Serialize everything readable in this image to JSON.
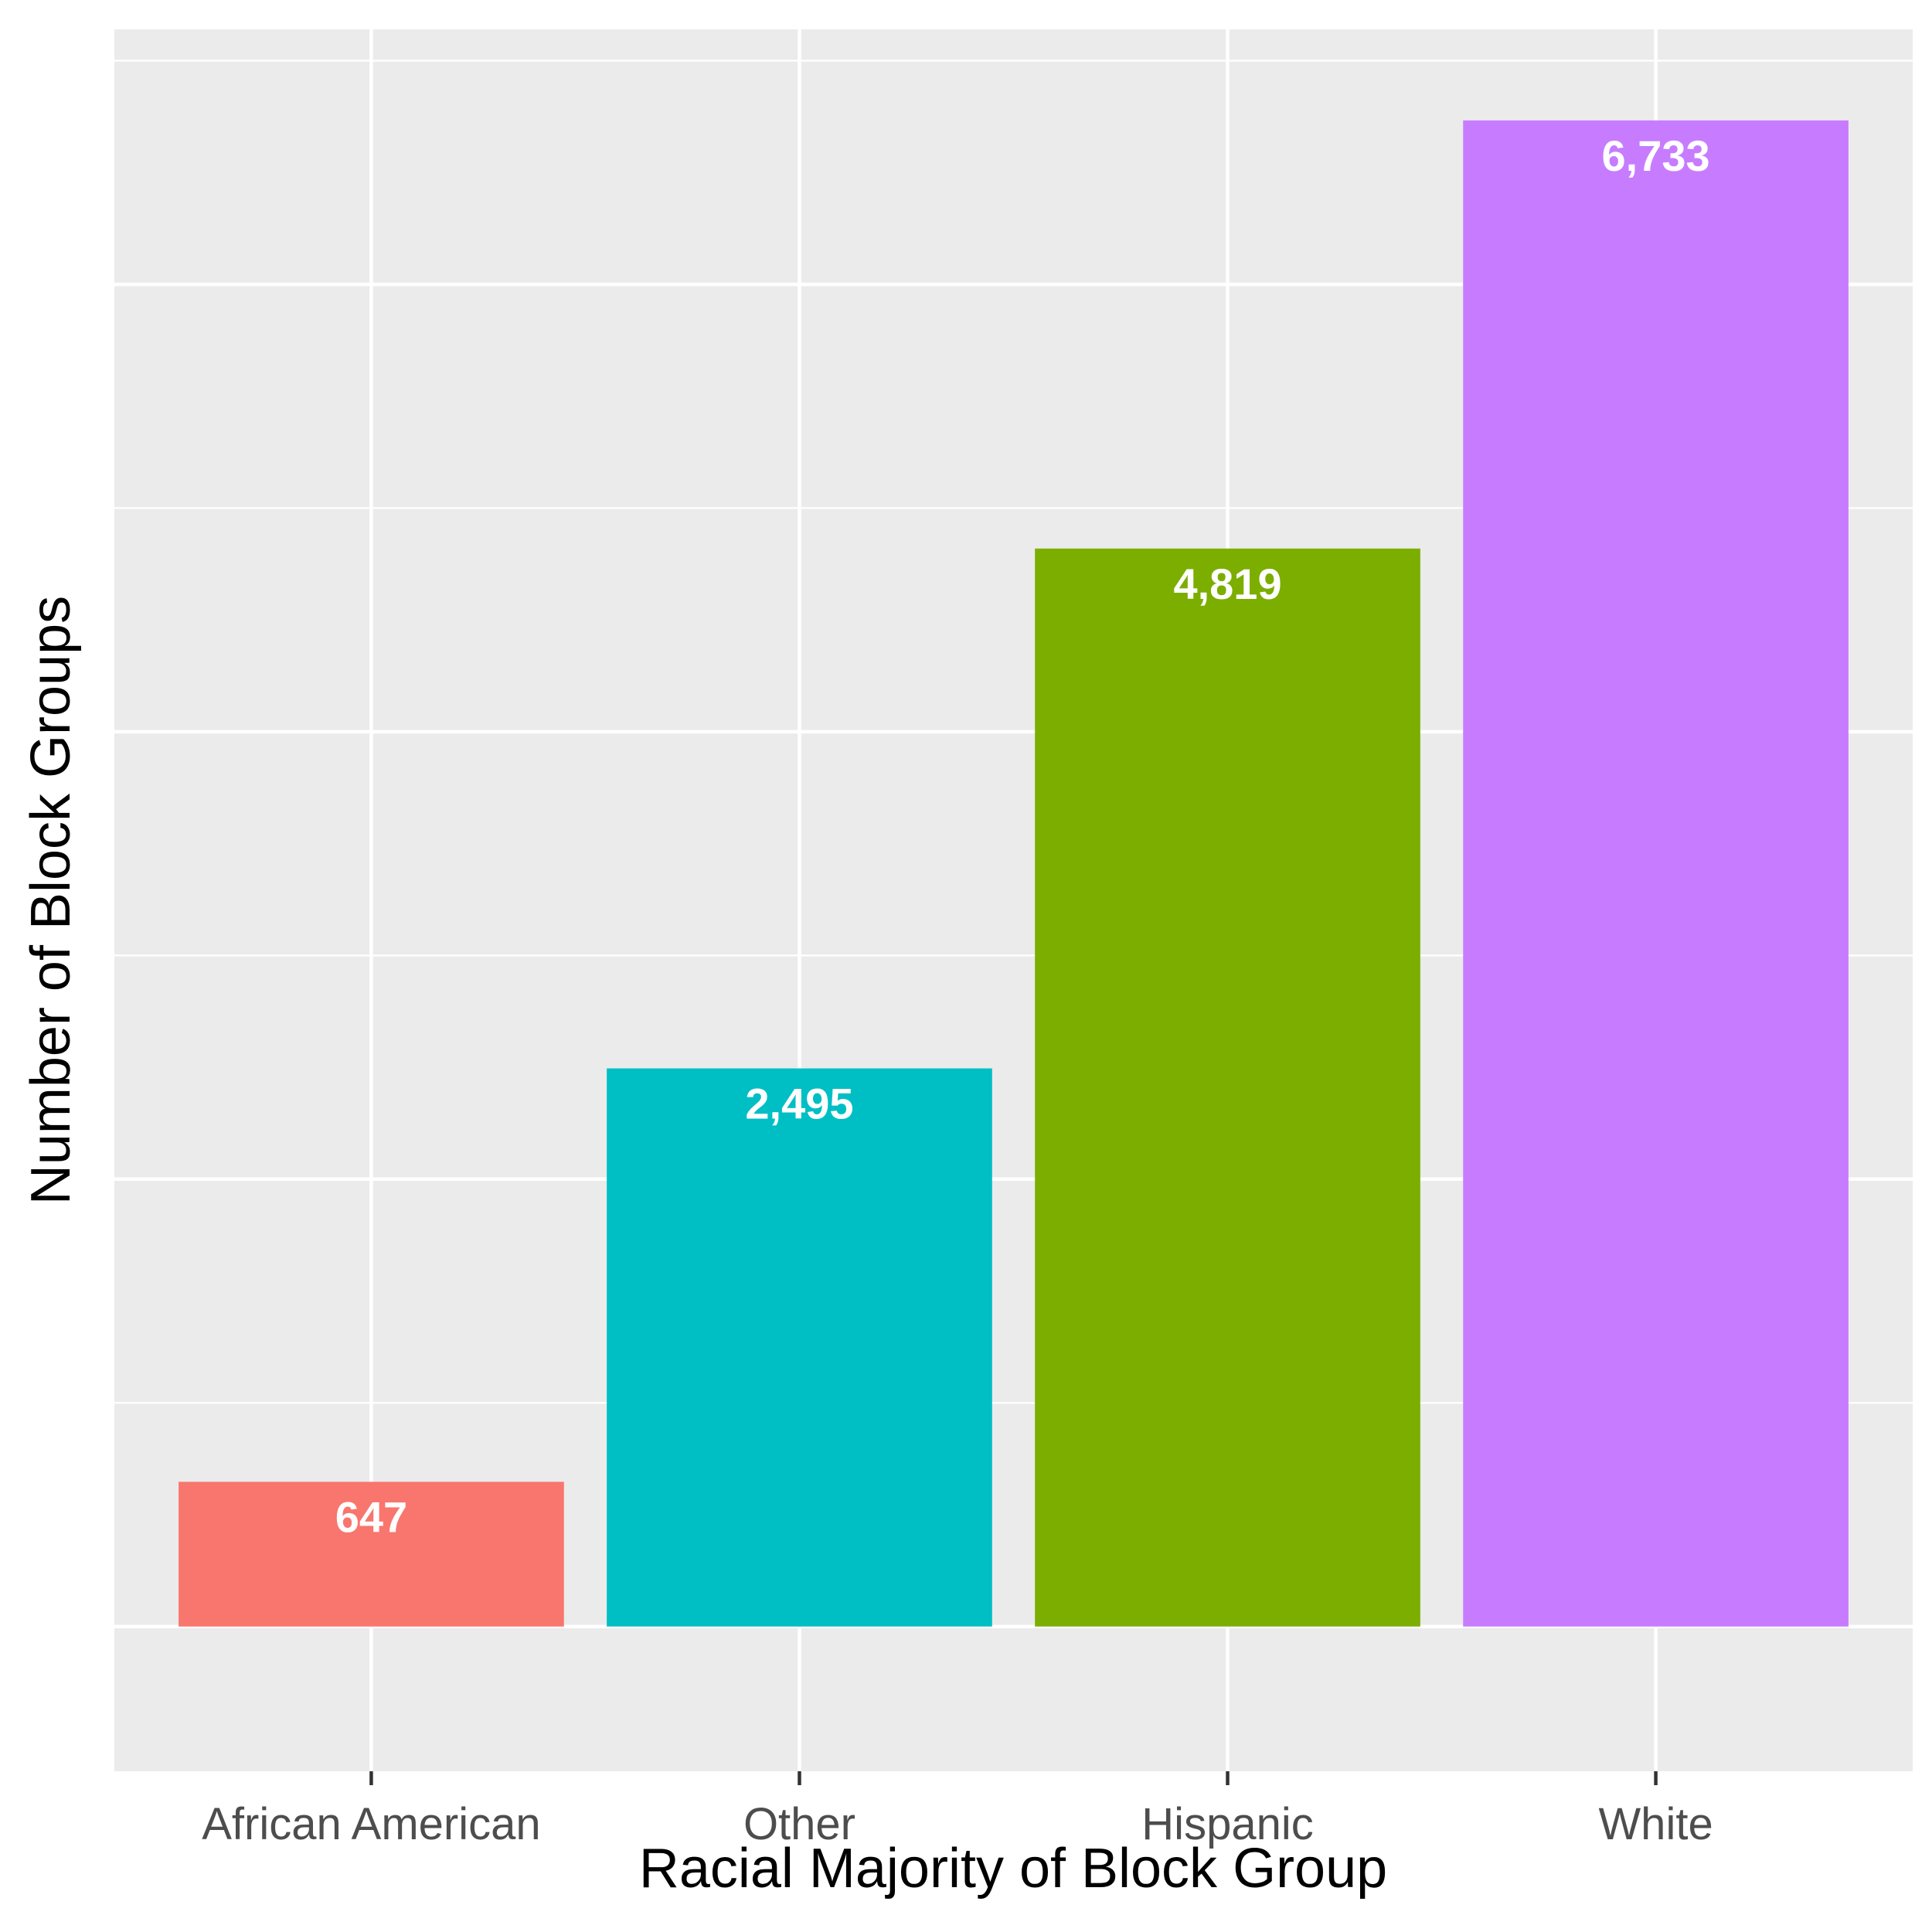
{
  "chart_data": {
    "type": "bar",
    "categories": [
      "African American",
      "Other",
      "Hispanic",
      "White"
    ],
    "values": [
      647,
      2495,
      4819,
      6733
    ],
    "value_labels": [
      "647",
      "2,495",
      "4,819",
      "6,733"
    ],
    "colors": [
      "#F8766D",
      "#00BFC4",
      "#7CAE00",
      "#C77CFF"
    ],
    "title": "",
    "xlabel": "Racial Majority of Block Group",
    "ylabel": "Number of Block Groups",
    "ylim": [
      -647,
      7140
    ],
    "y_tick_labels_shown": false,
    "grid": true,
    "panel_background": "#EBEBEB",
    "grid_color": "#FFFFFF",
    "legend": "none"
  }
}
